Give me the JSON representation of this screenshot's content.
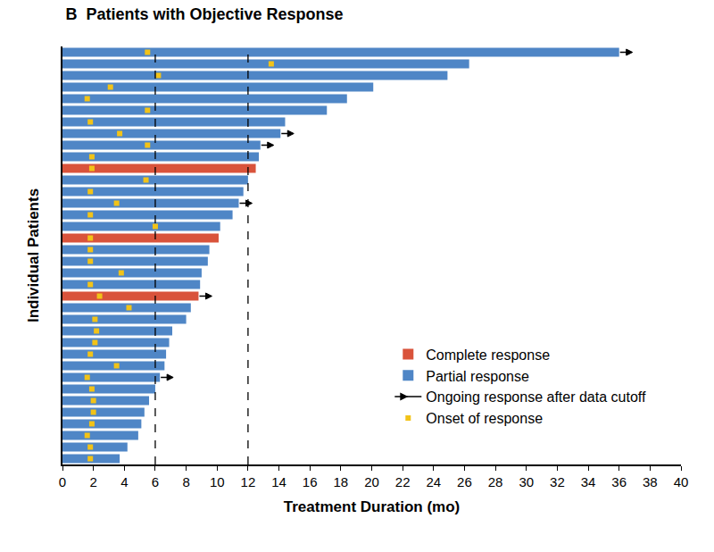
{
  "chart_data": {
    "type": "bar",
    "orientation": "horizontal",
    "title": "B  Patients with Objective Response",
    "x_label": "Treatment Duration (mo)",
    "y_label": "Individual Patients",
    "categories": [
      null,
      null,
      null,
      null,
      null,
      null,
      null,
      null,
      null,
      null,
      null,
      null,
      null,
      null,
      null,
      null,
      null,
      null,
      null,
      null,
      null,
      null,
      null,
      null,
      null,
      null,
      null,
      null,
      null,
      null,
      null,
      null,
      null,
      null,
      null,
      null
    ],
    "series": [
      {
        "name": "Complete response",
        "color": "#d9533b",
        "values": [
          null,
          null,
          null,
          null,
          null,
          null,
          null,
          null,
          null,
          null,
          12.5,
          null,
          null,
          null,
          null,
          null,
          10.1,
          null,
          null,
          null,
          null,
          8.8,
          null,
          null,
          null,
          null,
          null,
          null,
          null,
          null,
          null,
          null,
          null,
          null,
          null,
          null
        ]
      },
      {
        "name": "Partial response",
        "color": "#4f86c6",
        "values": [
          36.0,
          26.3,
          24.9,
          20.1,
          18.4,
          17.1,
          14.4,
          14.1,
          12.8,
          12.7,
          null,
          12.0,
          11.7,
          11.4,
          11.0,
          10.2,
          null,
          9.5,
          9.4,
          9.0,
          8.9,
          null,
          8.3,
          8.0,
          7.1,
          6.9,
          6.7,
          6.6,
          6.3,
          6.0,
          5.6,
          5.3,
          5.1,
          4.9,
          4.2,
          3.7
        ]
      },
      {
        "name": "Ongoing response after data cutoff",
        "type": "arrow",
        "color": "#000000",
        "marker": "arrow",
        "values": [
          36.0,
          null,
          null,
          null,
          null,
          null,
          null,
          14.1,
          12.8,
          null,
          null,
          null,
          null,
          11.4,
          null,
          null,
          null,
          null,
          null,
          null,
          null,
          8.8,
          null,
          null,
          null,
          null,
          null,
          null,
          6.3,
          null,
          null,
          null,
          null,
          null,
          null,
          null
        ]
      },
      {
        "name": "Onset of response",
        "type": "scatter",
        "color": "#f2c318",
        "marker": "square",
        "values": [
          5.5,
          13.5,
          6.2,
          3.1,
          1.6,
          5.5,
          1.8,
          3.7,
          5.5,
          1.9,
          1.9,
          5.4,
          1.8,
          3.5,
          1.8,
          6.0,
          1.8,
          1.8,
          1.8,
          3.8,
          1.8,
          2.4,
          4.3,
          2.1,
          2.2,
          2.1,
          1.8,
          3.5,
          1.6,
          1.9,
          2.0,
          2.0,
          1.9,
          1.6,
          1.8,
          1.8
        ]
      }
    ],
    "vlines": [
      6,
      12
    ],
    "xlim": [
      0,
      40
    ],
    "xticks": [
      0,
      2,
      4,
      6,
      8,
      10,
      12,
      14,
      16,
      18,
      20,
      22,
      24,
      26,
      28,
      30,
      32,
      34,
      36,
      38,
      40
    ],
    "tick_labels": "x",
    "grid": false,
    "legend": "lower right"
  }
}
